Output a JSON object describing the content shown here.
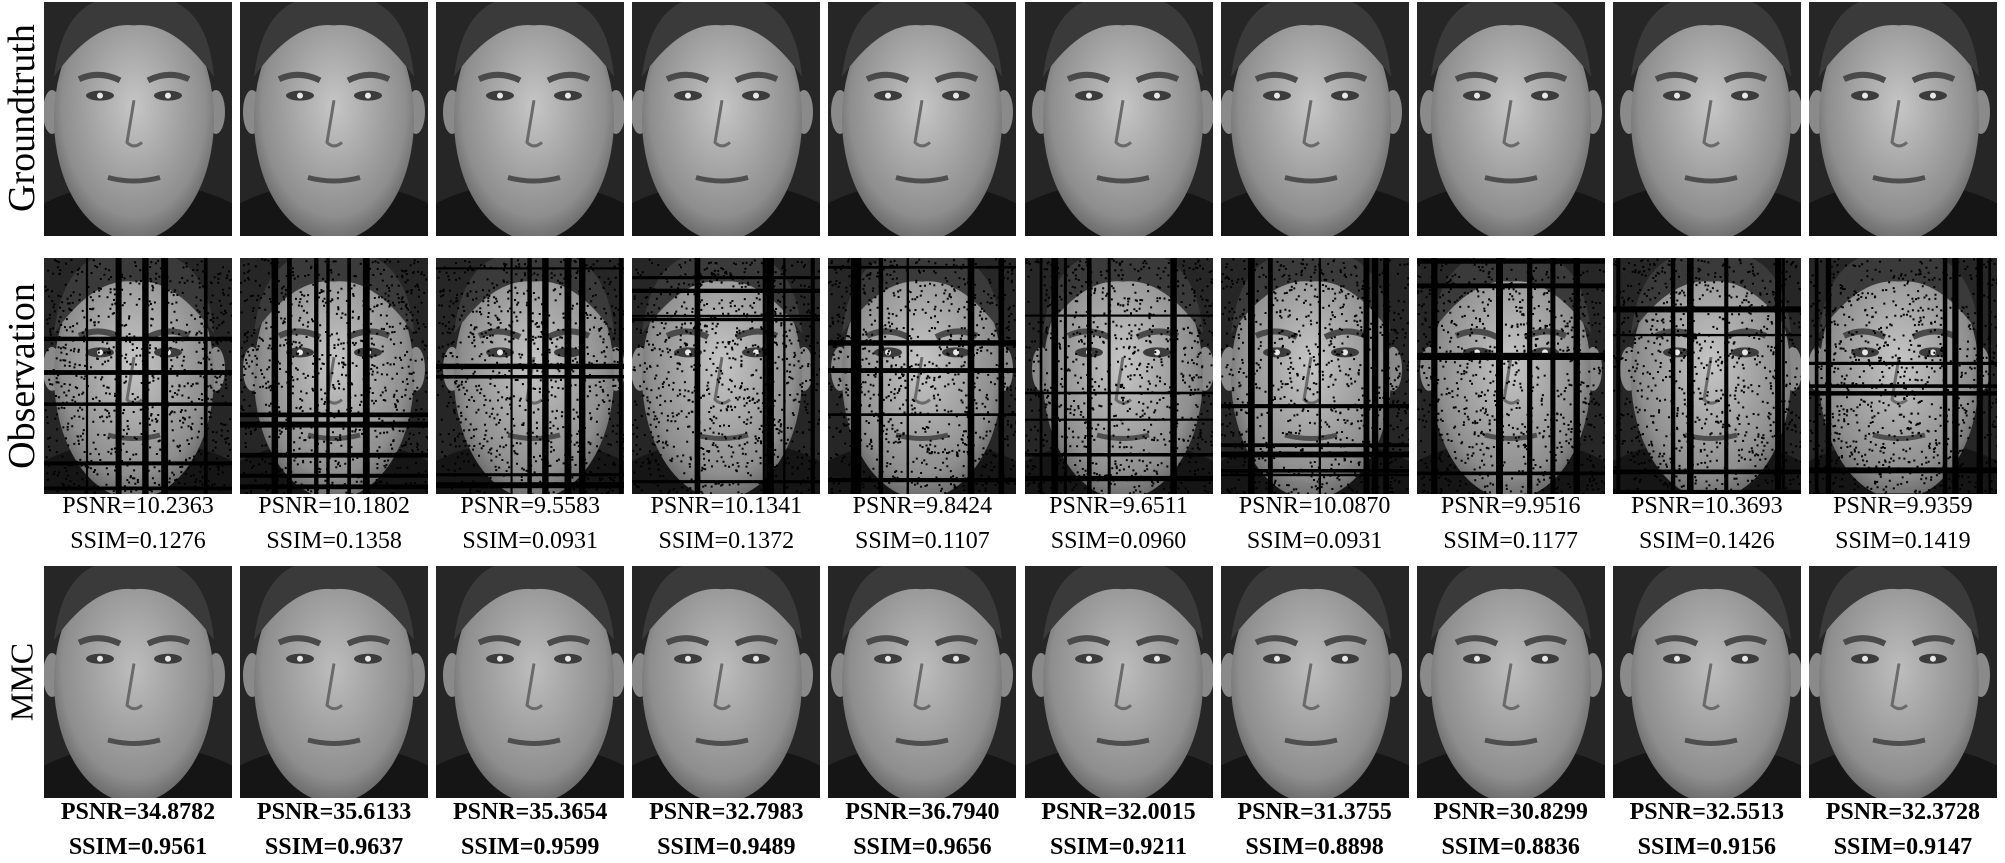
{
  "rows": [
    {
      "label": "Groundtruth"
    },
    {
      "label": "Observation"
    },
    {
      "label": "MMC"
    }
  ],
  "observation_metrics": [
    {
      "psnr": "PSNR=10.2363",
      "ssim": "SSIM=0.1276"
    },
    {
      "psnr": "PSNR=10.1802",
      "ssim": "SSIM=0.1358"
    },
    {
      "psnr": "PSNR=9.5583",
      "ssim": "SSIM=0.0931"
    },
    {
      "psnr": "PSNR=10.1341",
      "ssim": "SSIM=0.1372"
    },
    {
      "psnr": "PSNR=9.8424",
      "ssim": "SSIM=0.1107"
    },
    {
      "psnr": "PSNR=9.6511",
      "ssim": "SSIM=0.0960"
    },
    {
      "psnr": "PSNR=10.0870",
      "ssim": "SSIM=0.0931"
    },
    {
      "psnr": "PSNR=9.9516",
      "ssim": "SSIM=0.1177"
    },
    {
      "psnr": "PSNR=10.3693",
      "ssim": "SSIM=0.1426"
    },
    {
      "psnr": "PSNR=9.9359",
      "ssim": "SSIM=0.1419"
    }
  ],
  "mmc_metrics": [
    {
      "psnr": "PSNR=34.8782",
      "ssim": "SSIM=0.9561"
    },
    {
      "psnr": "PSNR=35.6133",
      "ssim": "SSIM=0.9637"
    },
    {
      "psnr": "PSNR=35.3654",
      "ssim": "SSIM=0.9599"
    },
    {
      "psnr": "PSNR=32.7983",
      "ssim": "SSIM=0.9489"
    },
    {
      "psnr": "PSNR=36.7940",
      "ssim": "SSIM=0.9656"
    },
    {
      "psnr": "PSNR=32.0015",
      "ssim": "SSIM=0.9211"
    },
    {
      "psnr": "PSNR=31.3755",
      "ssim": "SSIM=0.8898"
    },
    {
      "psnr": "PSNR=30.8299",
      "ssim": "SSIM=0.8836"
    },
    {
      "psnr": "PSNR=32.5513",
      "ssim": "SSIM=0.9156"
    },
    {
      "psnr": "PSNR=32.3728",
      "ssim": "SSIM=0.9147"
    }
  ]
}
